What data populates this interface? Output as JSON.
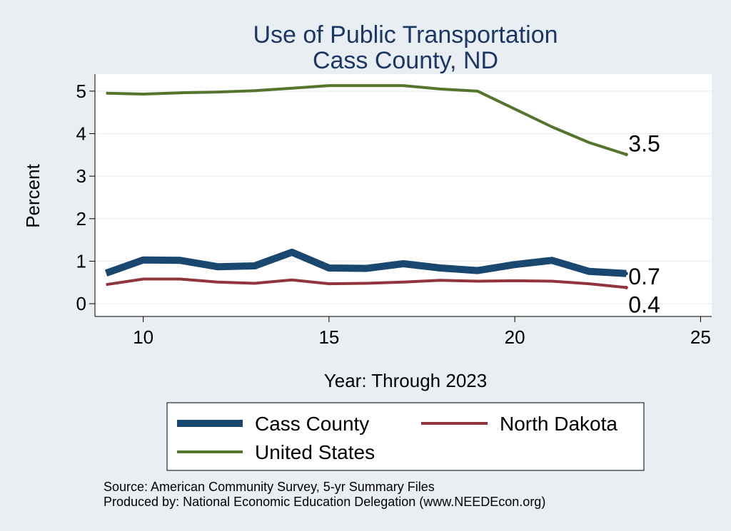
{
  "chart_data": {
    "type": "line",
    "title": [
      "Use of Public Transportation",
      "Cass County, ND"
    ],
    "xlabel": "Year: Through 2023",
    "ylabel": "Percent",
    "xlim": [
      8.7,
      25.3
    ],
    "ylim": [
      -0.3,
      5.4
    ],
    "xticks": [
      10,
      15,
      20,
      25
    ],
    "yticks": [
      0,
      1,
      2,
      3,
      4,
      5
    ],
    "grid": true,
    "x": [
      9,
      10,
      11,
      12,
      13,
      14,
      15,
      16,
      17,
      18,
      19,
      20,
      21,
      22,
      23
    ],
    "series": [
      {
        "name": "Cass County",
        "color": "#1a476f",
        "values": [
          0.72,
          1.03,
          1.02,
          0.87,
          0.89,
          1.21,
          0.84,
          0.83,
          0.94,
          0.84,
          0.78,
          0.92,
          1.02,
          0.76,
          0.71
        ],
        "end_label": "0.7"
      },
      {
        "name": "North Dakota",
        "color": "#90353b",
        "values": [
          0.45,
          0.58,
          0.58,
          0.51,
          0.48,
          0.56,
          0.47,
          0.48,
          0.51,
          0.55,
          0.53,
          0.54,
          0.53,
          0.47,
          0.38
        ],
        "end_label": "0.4"
      },
      {
        "name": "United States",
        "color": "#55752f",
        "values": [
          4.95,
          4.93,
          4.96,
          4.98,
          5.01,
          5.07,
          5.13,
          5.13,
          5.13,
          5.05,
          5.0,
          4.58,
          4.16,
          3.79,
          3.51
        ],
        "end_label": "3.5"
      }
    ],
    "legend_position": "bottom"
  },
  "notes": [
    "Source: American Community Survey, 5-yr Summary Files",
    "Produced by: National Economic Education Delegation (www.NEEDEcon.org)"
  ]
}
